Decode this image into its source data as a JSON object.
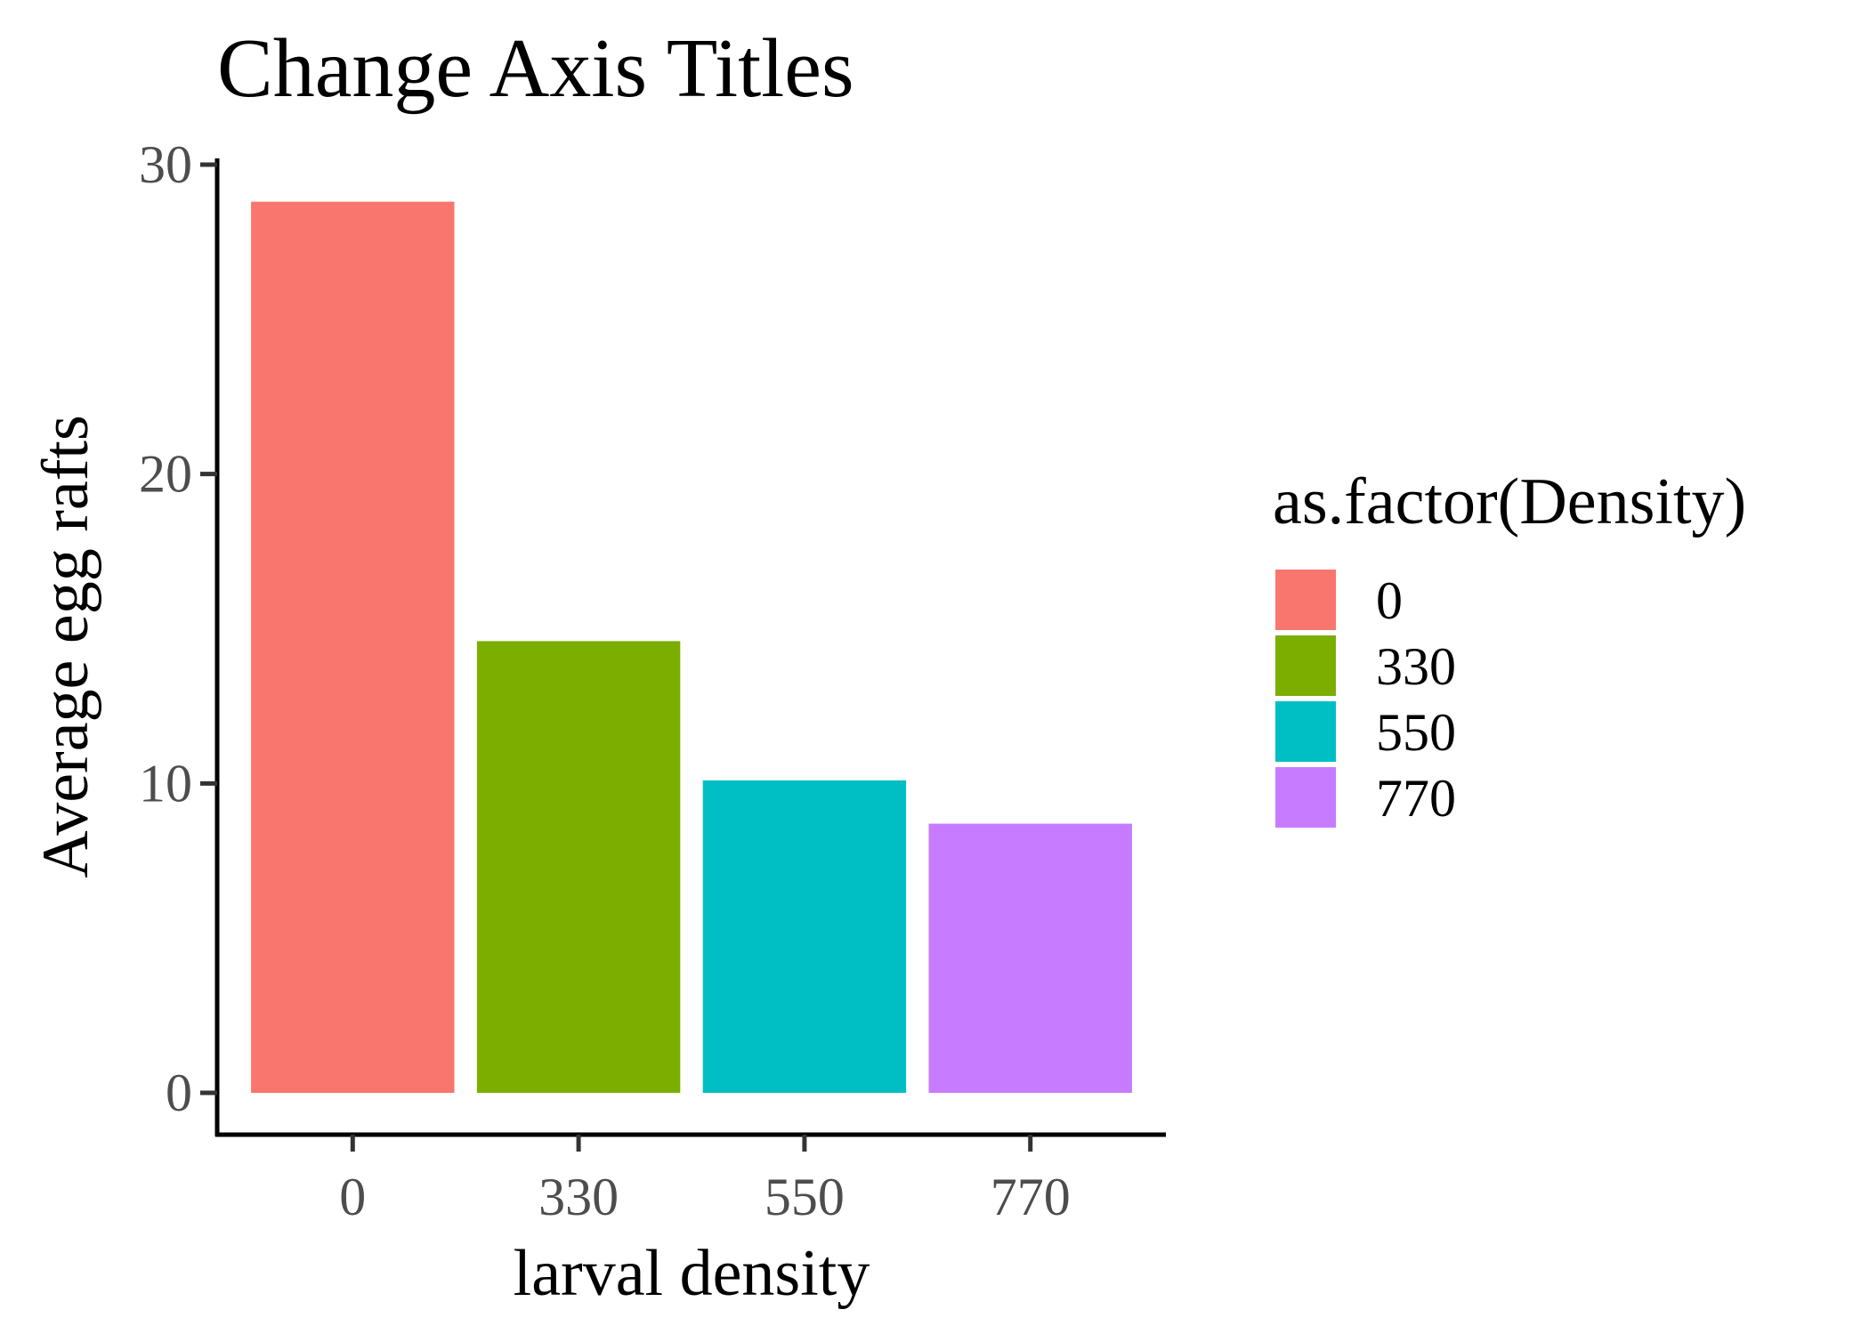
{
  "chart_data": {
    "type": "bar",
    "title": "Change Axis Titles",
    "xlabel": "larval density",
    "ylabel": "Average egg rafts",
    "categories": [
      "0",
      "330",
      "550",
      "770"
    ],
    "values": [
      28.8,
      14.6,
      10.1,
      8.7
    ],
    "colors": [
      "#F8766D",
      "#7CAE00",
      "#00BFC4",
      "#C77CFF"
    ],
    "ylim": [
      -1.35,
      30.2
    ],
    "yticks": [
      0,
      10,
      20,
      30
    ],
    "grid": false,
    "legend": {
      "title": "as.factor(Density)",
      "position": "right",
      "entries": [
        "0",
        "330",
        "550",
        "770"
      ]
    }
  }
}
